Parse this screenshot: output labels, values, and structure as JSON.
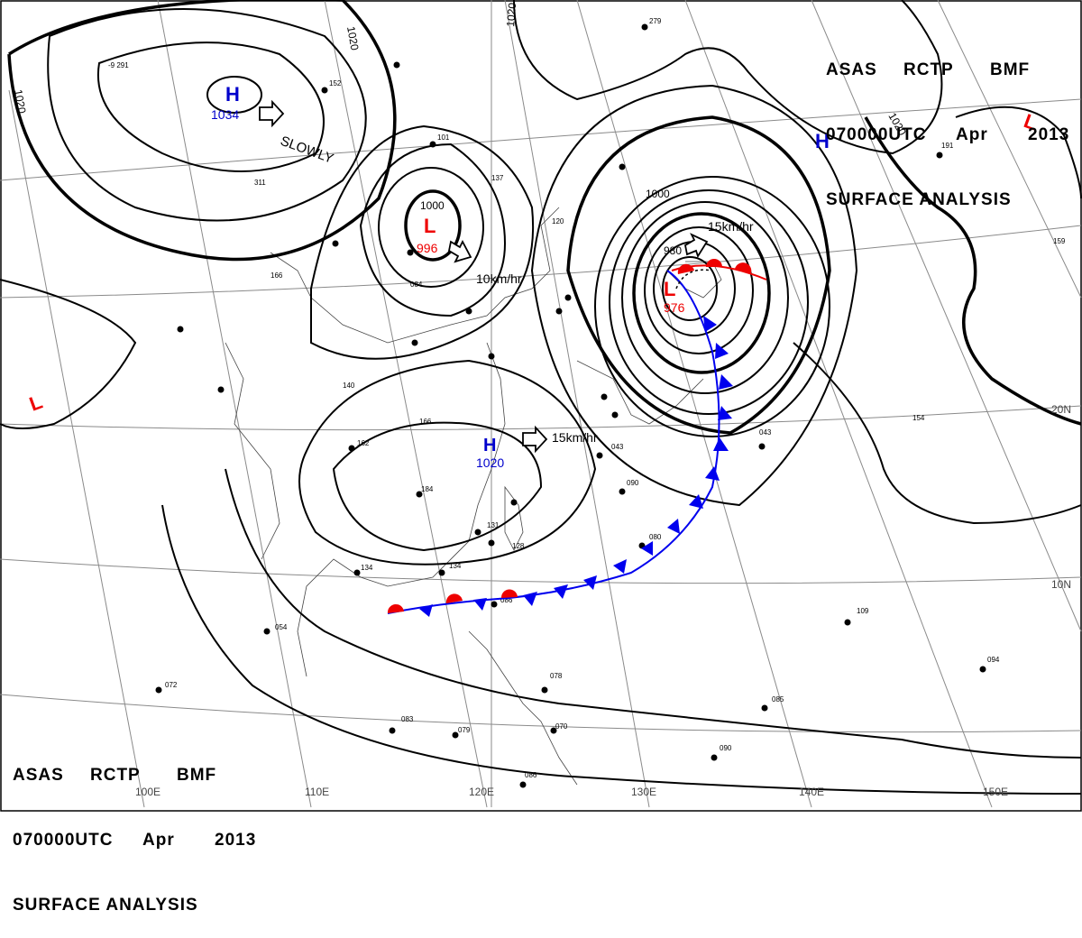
{
  "header": {
    "agency": "ASAS",
    "station": "RCTP",
    "code": "BMF",
    "time": "070000UTC",
    "month": "Apr",
    "year": "2013",
    "title": "SURFACE ANALYSIS"
  },
  "colors": {
    "high": "#0000cc",
    "low": "#ee0000",
    "cold_front": "#0000ee",
    "warm_front": "#ee0000",
    "isobar": "#000000",
    "grid": "#8a8a8a"
  },
  "pressure_systems": [
    {
      "id": "h1",
      "type": "H",
      "value": "1034"
    },
    {
      "id": "l1",
      "type": "L",
      "value": "996"
    },
    {
      "id": "l2",
      "type": "L",
      "value": "976"
    },
    {
      "id": "h2",
      "type": "H",
      "value": "1020"
    },
    {
      "id": "h3",
      "type": "H",
      "value": ""
    },
    {
      "id": "l3",
      "type": "L",
      "value": ""
    },
    {
      "id": "l4",
      "type": "L",
      "value": ""
    }
  ],
  "motion": {
    "slowly": "SLOWLY",
    "l1_speed": "10km/hr",
    "l2_speed": "15km/hr",
    "h2_speed": "15km/hr"
  },
  "isobar_labels": [
    "1020",
    "1020",
    "1020",
    "1020",
    "1000",
    "1000",
    "980"
  ],
  "longitude_labels": [
    "110E",
    "120E",
    "130E",
    "140E",
    "150E",
    "100E"
  ],
  "latitude_labels": [
    "20N",
    "10N"
  ]
}
